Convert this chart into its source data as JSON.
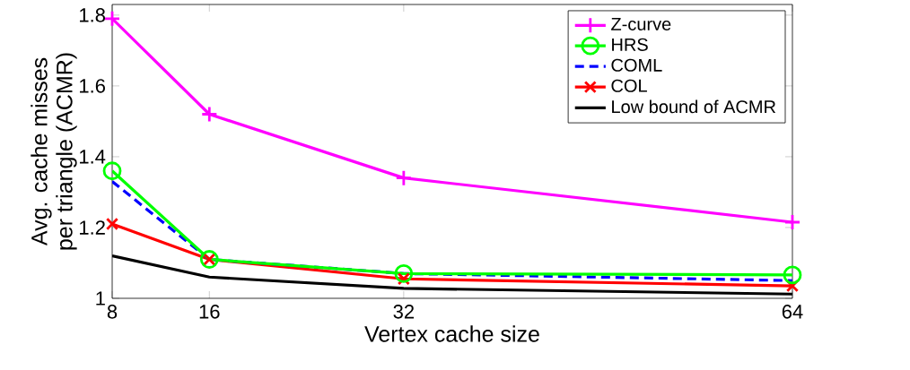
{
  "chart_data": {
    "type": "line",
    "xlabel": "Vertex cache size",
    "ylabel": "Avg. cache misses\nper triangle (ACMR)",
    "x": [
      8,
      16,
      32,
      64
    ],
    "xlim": [
      8,
      64
    ],
    "ylim": [
      1,
      1.83
    ],
    "xticks": [
      8,
      16,
      32,
      64
    ],
    "yticks": [
      1,
      1.2,
      1.4,
      1.6,
      1.8
    ],
    "grid": false,
    "legend": "top right",
    "series": [
      {
        "name": "Z-curve",
        "color": "#ff00ff",
        "marker": "cross",
        "line_style": "solid",
        "values": [
          1.79,
          1.52,
          1.34,
          1.215
        ]
      },
      {
        "name": "HRS",
        "color": "#00ff00",
        "marker": "circle",
        "line_style": "solid",
        "values": [
          1.36,
          1.11,
          1.07,
          1.066
        ]
      },
      {
        "name": "COML",
        "color": "#0000ff",
        "marker": "none",
        "line_style": "dashed",
        "values": [
          1.33,
          1.11,
          1.07,
          1.05
        ]
      },
      {
        "name": "COL",
        "color": "#ff0000",
        "marker": "cross",
        "line_style": "solid",
        "values": [
          1.21,
          1.11,
          1.055,
          1.035
        ]
      },
      {
        "name": "Low bound of ACMR",
        "color": "#000000",
        "marker": "none",
        "line_style": "solid",
        "values": [
          1.12,
          1.06,
          1.028,
          1.012
        ]
      }
    ]
  }
}
